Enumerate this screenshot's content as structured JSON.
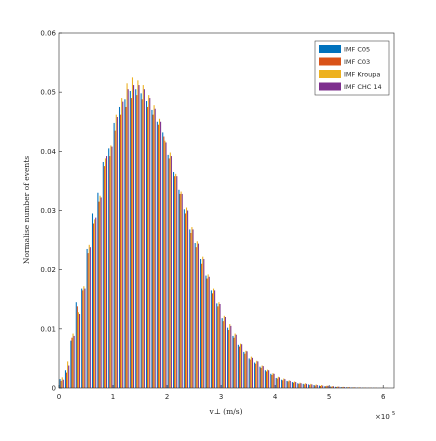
{
  "chart_data": {
    "type": "bar",
    "xlabel": "v⊥ (m/s)",
    "ylabel": "Normalise number of events",
    "x_multiplier": "×10",
    "x_multiplier_exp": "5",
    "xlim": [
      0,
      6.2
    ],
    "ylim": [
      0,
      0.06
    ],
    "xticks": [
      0,
      1,
      2,
      3,
      4,
      5,
      6
    ],
    "yticks": [
      "0",
      "0.01",
      "0.02",
      "0.03",
      "0.04",
      "0.05",
      "0.06"
    ],
    "legend_position": "top-right",
    "bin_width": 0.1,
    "x": [
      0.05,
      0.15,
      0.25,
      0.35,
      0.45,
      0.55,
      0.65,
      0.75,
      0.85,
      0.95,
      1.05,
      1.15,
      1.25,
      1.35,
      1.45,
      1.55,
      1.65,
      1.75,
      1.85,
      1.95,
      2.05,
      2.15,
      2.25,
      2.35,
      2.45,
      2.55,
      2.65,
      2.75,
      2.85,
      2.95,
      3.05,
      3.15,
      3.25,
      3.35,
      3.45,
      3.55,
      3.65,
      3.75,
      3.85,
      3.95,
      4.05,
      4.15,
      4.25,
      4.35,
      4.45,
      4.55,
      4.65,
      4.75,
      4.85,
      4.95,
      5.05,
      5.15,
      5.25,
      5.35,
      5.45,
      5.55,
      5.65,
      5.75,
      5.85,
      5.95,
      6.05
    ],
    "series": [
      {
        "name": "IMF C05",
        "color": "#0072BD",
        "values": [
          0.0015,
          0.003,
          0.008,
          0.0145,
          0.0168,
          0.0235,
          0.0295,
          0.033,
          0.0382,
          0.0405,
          0.0448,
          0.0475,
          0.0488,
          0.0502,
          0.0505,
          0.0498,
          0.0485,
          0.047,
          0.045,
          0.0432,
          0.0394,
          0.0365,
          0.0335,
          0.0302,
          0.0268,
          0.0245,
          0.0218,
          0.019,
          0.0165,
          0.0143,
          0.0118,
          0.0102,
          0.0088,
          0.0073,
          0.0061,
          0.005,
          0.0043,
          0.0036,
          0.003,
          0.0024,
          0.0017,
          0.0014,
          0.0012,
          0.001,
          0.0008,
          0.0007,
          0.0006,
          0.0005,
          0.0004,
          0.0003,
          0.00025,
          0.0002,
          0.00015,
          0.00012,
          0.0001,
          8e-05,
          6e-05,
          5e-05,
          4e-05,
          3e-05,
          2e-05
        ]
      },
      {
        "name": "IMF C03",
        "color": "#D95319",
        "values": [
          0.0012,
          0.0026,
          0.0085,
          0.0138,
          0.0165,
          0.0228,
          0.0278,
          0.0315,
          0.0375,
          0.0392,
          0.0435,
          0.0462,
          0.0475,
          0.049,
          0.0495,
          0.0488,
          0.0475,
          0.0462,
          0.0445,
          0.0425,
          0.0388,
          0.0358,
          0.0328,
          0.0295,
          0.0262,
          0.0238,
          0.021,
          0.0185,
          0.016,
          0.0138,
          0.0113,
          0.0098,
          0.0085,
          0.007,
          0.0058,
          0.0048,
          0.0041,
          0.0034,
          0.0028,
          0.0022,
          0.0016,
          0.0013,
          0.0011,
          0.0009,
          0.0007,
          0.0006,
          0.0005,
          0.0004,
          0.00035,
          0.0003,
          0.00022,
          0.00018,
          0.00014,
          0.00011,
          9e-05,
          7e-05,
          5e-05,
          4e-05,
          3e-05,
          2e-05,
          2e-05
        ]
      },
      {
        "name": "IMF Kroupa",
        "color": "#EDB120",
        "values": [
          0.0018,
          0.0045,
          0.0092,
          0.0128,
          0.0172,
          0.0242,
          0.0285,
          0.0325,
          0.0388,
          0.041,
          0.0462,
          0.049,
          0.0515,
          0.0525,
          0.052,
          0.0512,
          0.0495,
          0.0478,
          0.0455,
          0.0418,
          0.0398,
          0.0362,
          0.0332,
          0.0305,
          0.0272,
          0.0248,
          0.0222,
          0.0192,
          0.0168,
          0.0145,
          0.0122,
          0.0108,
          0.0092,
          0.0075,
          0.0063,
          0.0053,
          0.0046,
          0.0038,
          0.0031,
          0.0025,
          0.0019,
          0.0016,
          0.0013,
          0.0011,
          0.0009,
          0.0008,
          0.0007,
          0.0006,
          0.0005,
          0.0004,
          0.0003,
          0.00025,
          0.0002,
          0.00015,
          0.00012,
          0.0001,
          8e-05,
          6e-05,
          5e-05,
          4e-05,
          3e-05
        ]
      },
      {
        "name": "IMF CHC 14",
        "color": "#7E2F8E",
        "values": [
          0.0014,
          0.0038,
          0.0088,
          0.0125,
          0.0168,
          0.0238,
          0.0288,
          0.0322,
          0.0392,
          0.0408,
          0.0458,
          0.0484,
          0.0505,
          0.0512,
          0.0512,
          0.0505,
          0.049,
          0.0472,
          0.045,
          0.0415,
          0.0392,
          0.0358,
          0.0328,
          0.03,
          0.0268,
          0.0244,
          0.0218,
          0.0188,
          0.0165,
          0.0142,
          0.012,
          0.0105,
          0.009,
          0.0074,
          0.0062,
          0.0051,
          0.0045,
          0.0037,
          0.003,
          0.0024,
          0.0018,
          0.0015,
          0.0012,
          0.001,
          0.0008,
          0.0007,
          0.0006,
          0.0005,
          0.0004,
          0.00035,
          0.00028,
          0.00022,
          0.00017,
          0.00013,
          0.0001,
          8e-05,
          6e-05,
          5e-05,
          4e-05,
          3e-05,
          2e-05
        ]
      }
    ]
  }
}
